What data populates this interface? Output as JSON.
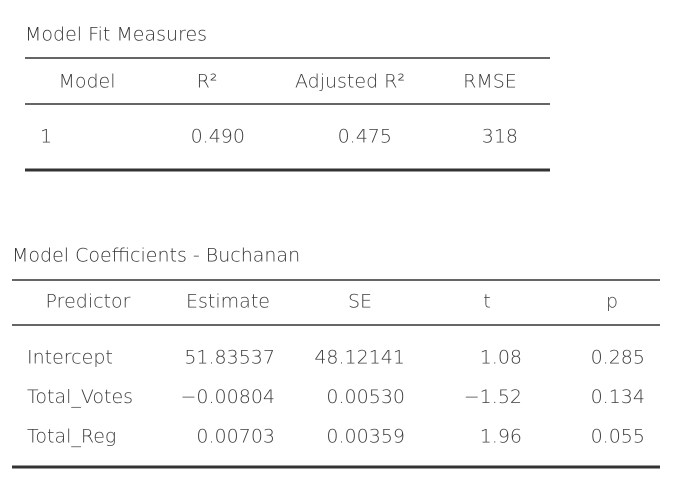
{
  "tables": [
    {
      "title": "Model Fit Measures",
      "header": [
        "Model",
        "R²",
        "Adjusted R²",
        "RMSE"
      ],
      "rows": [
        [
          "1",
          "0.490",
          "0.475",
          "318"
        ]
      ]
    },
    {
      "title": "Model Coefficients - Buchanan",
      "header": [
        "Predictor",
        "Estimate",
        "SE",
        "t",
        "p"
      ],
      "rows": [
        [
          "Intercept",
          "51.83537",
          "48.12141",
          "1.08",
          "0.285"
        ],
        [
          "Total_Votes",
          "−0.00804",
          "0.00530",
          "−1.52",
          "0.134"
        ],
        [
          "Total_Reg",
          "0.00703",
          "0.00359",
          "1.96",
          "0.055"
        ]
      ]
    }
  ]
}
